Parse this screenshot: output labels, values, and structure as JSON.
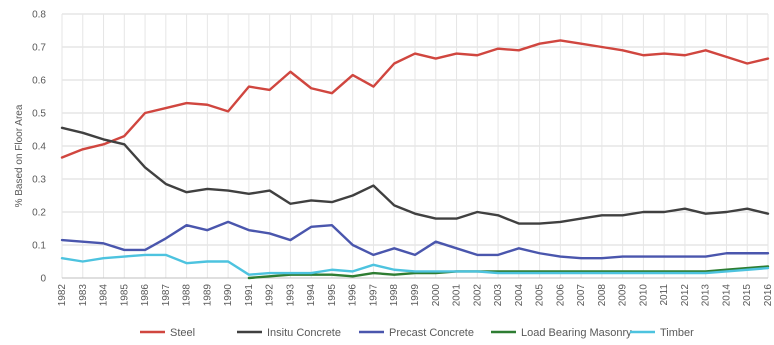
{
  "chart_data": {
    "type": "line",
    "title": "",
    "xlabel": "",
    "ylabel": "% Based on Floor Area",
    "x": [
      1982,
      1983,
      1984,
      1985,
      1986,
      1987,
      1988,
      1989,
      1990,
      1991,
      1992,
      1993,
      1994,
      1995,
      1996,
      1997,
      1998,
      1999,
      2000,
      2001,
      2002,
      2003,
      2004,
      2005,
      2006,
      2007,
      2008,
      2009,
      2010,
      2011,
      2012,
      2013,
      2014,
      2015,
      2016
    ],
    "yticks": [
      "0",
      "0.1",
      "0.2",
      "0.3",
      "0.4",
      "0.5",
      "0.6",
      "0.7",
      "0.8"
    ],
    "ylim": [
      0,
      0.8
    ],
    "grid": true,
    "legend_position": "bottom",
    "series": [
      {
        "name": "Steel",
        "color": "#d0463f",
        "values": [
          0.365,
          0.39,
          0.405,
          0.43,
          0.5,
          0.515,
          0.53,
          0.525,
          0.505,
          0.58,
          0.57,
          0.625,
          0.575,
          0.56,
          0.615,
          0.58,
          0.65,
          0.68,
          0.665,
          0.68,
          0.675,
          0.695,
          0.69,
          0.71,
          0.72,
          0.71,
          0.7,
          0.69,
          0.675,
          0.68,
          0.675,
          0.69,
          0.67,
          0.65,
          0.665
        ]
      },
      {
        "name": "Insitu Concrete",
        "color": "#404040",
        "values": [
          0.455,
          0.44,
          0.42,
          0.405,
          0.335,
          0.285,
          0.26,
          0.27,
          0.265,
          0.255,
          0.265,
          0.225,
          0.235,
          0.23,
          0.25,
          0.28,
          0.22,
          0.195,
          0.18,
          0.18,
          0.2,
          0.19,
          0.165,
          0.165,
          0.17,
          0.18,
          0.19,
          0.19,
          0.2,
          0.2,
          0.21,
          0.195,
          0.2,
          0.21,
          0.195
        ]
      },
      {
        "name": "Precast Concrete",
        "color": "#4a56ad",
        "values": [
          0.115,
          0.11,
          0.105,
          0.085,
          0.085,
          0.12,
          0.16,
          0.145,
          0.17,
          0.145,
          0.135,
          0.115,
          0.155,
          0.16,
          0.1,
          0.07,
          0.09,
          0.07,
          0.11,
          0.09,
          0.07,
          0.07,
          0.09,
          0.075,
          0.065,
          0.06,
          0.06,
          0.065,
          0.065,
          0.065,
          0.065,
          0.065,
          0.075,
          0.075,
          0.075
        ]
      },
      {
        "name": "Load Bearing Masonry",
        "color": "#2e7d32",
        "values": [
          null,
          null,
          null,
          null,
          null,
          null,
          null,
          null,
          null,
          0.0,
          0.005,
          0.01,
          0.01,
          0.01,
          0.005,
          0.015,
          0.01,
          0.015,
          0.015,
          0.02,
          0.02,
          0.02,
          0.02,
          0.02,
          0.02,
          0.02,
          0.02,
          0.02,
          0.02,
          0.02,
          0.02,
          0.02,
          0.025,
          0.03,
          0.035
        ]
      },
      {
        "name": "Timber",
        "color": "#4dc3df",
        "values": [
          0.06,
          0.05,
          0.06,
          0.065,
          0.07,
          0.07,
          0.045,
          0.05,
          0.05,
          0.01,
          0.015,
          0.015,
          0.015,
          0.025,
          0.02,
          0.04,
          0.025,
          0.02,
          0.02,
          0.02,
          0.02,
          0.015,
          0.015,
          0.015,
          0.015,
          0.015,
          0.015,
          0.015,
          0.015,
          0.015,
          0.015,
          0.015,
          0.02,
          0.025,
          0.03
        ]
      }
    ]
  }
}
